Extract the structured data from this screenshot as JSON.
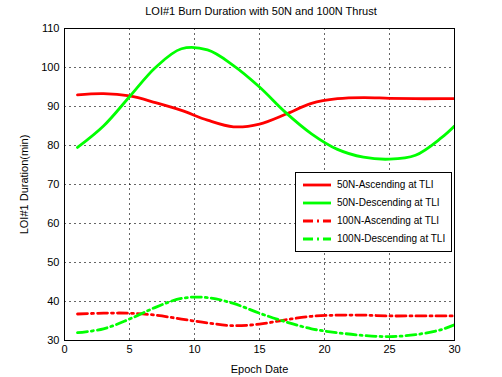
{
  "chart_data": {
    "type": "line",
    "title": "LOI#1 Burn Duration with 50N and 100N Thrust",
    "x_label": "Epoch Date",
    "y_label": "LOI#1 Duration(min)",
    "x": [
      1,
      3,
      5,
      7,
      9,
      11,
      13,
      15,
      17,
      19,
      21,
      23,
      25,
      27,
      29,
      30
    ],
    "series": [
      {
        "name": "50N-Ascending at TLI",
        "color": "#ff0000",
        "line_style": "solid",
        "values": [
          93,
          93.3,
          92.7,
          91,
          89,
          86.5,
          84.8,
          85.5,
          88,
          90.8,
          92,
          92.3,
          92.1,
          92,
          92,
          92
        ]
      },
      {
        "name": "50N-Descending at TLI",
        "color": "#00ff00",
        "line_style": "solid",
        "values": [
          79.5,
          85,
          92.5,
          100,
          104.8,
          104.5,
          100.5,
          95,
          88.5,
          83,
          79,
          77,
          76.5,
          77.5,
          82,
          85
        ]
      },
      {
        "name": "100N-Ascending at TLI",
        "color": "#ff0000",
        "line_style": "dashdot",
        "values": [
          36.8,
          37,
          37,
          36.5,
          35.5,
          34.5,
          33.8,
          34.2,
          35.3,
          36.2,
          36.5,
          36.5,
          36.3,
          36.3,
          36.3,
          36.3
        ]
      },
      {
        "name": "100N-Descending at TLI",
        "color": "#00ff00",
        "line_style": "dashdot",
        "values": [
          32,
          33,
          35.5,
          38.5,
          40.8,
          41,
          39.5,
          37,
          34.8,
          33,
          32,
          31.3,
          31,
          31.5,
          32.8,
          34
        ]
      }
    ],
    "xlim": [
      0,
      30
    ],
    "xticks": [
      0,
      5,
      10,
      15,
      20,
      25,
      30
    ],
    "ylim": [
      30,
      110
    ],
    "yticks": [
      30,
      40,
      50,
      60,
      70,
      80,
      90,
      100,
      110
    ],
    "grid": true,
    "legend": "right"
  }
}
